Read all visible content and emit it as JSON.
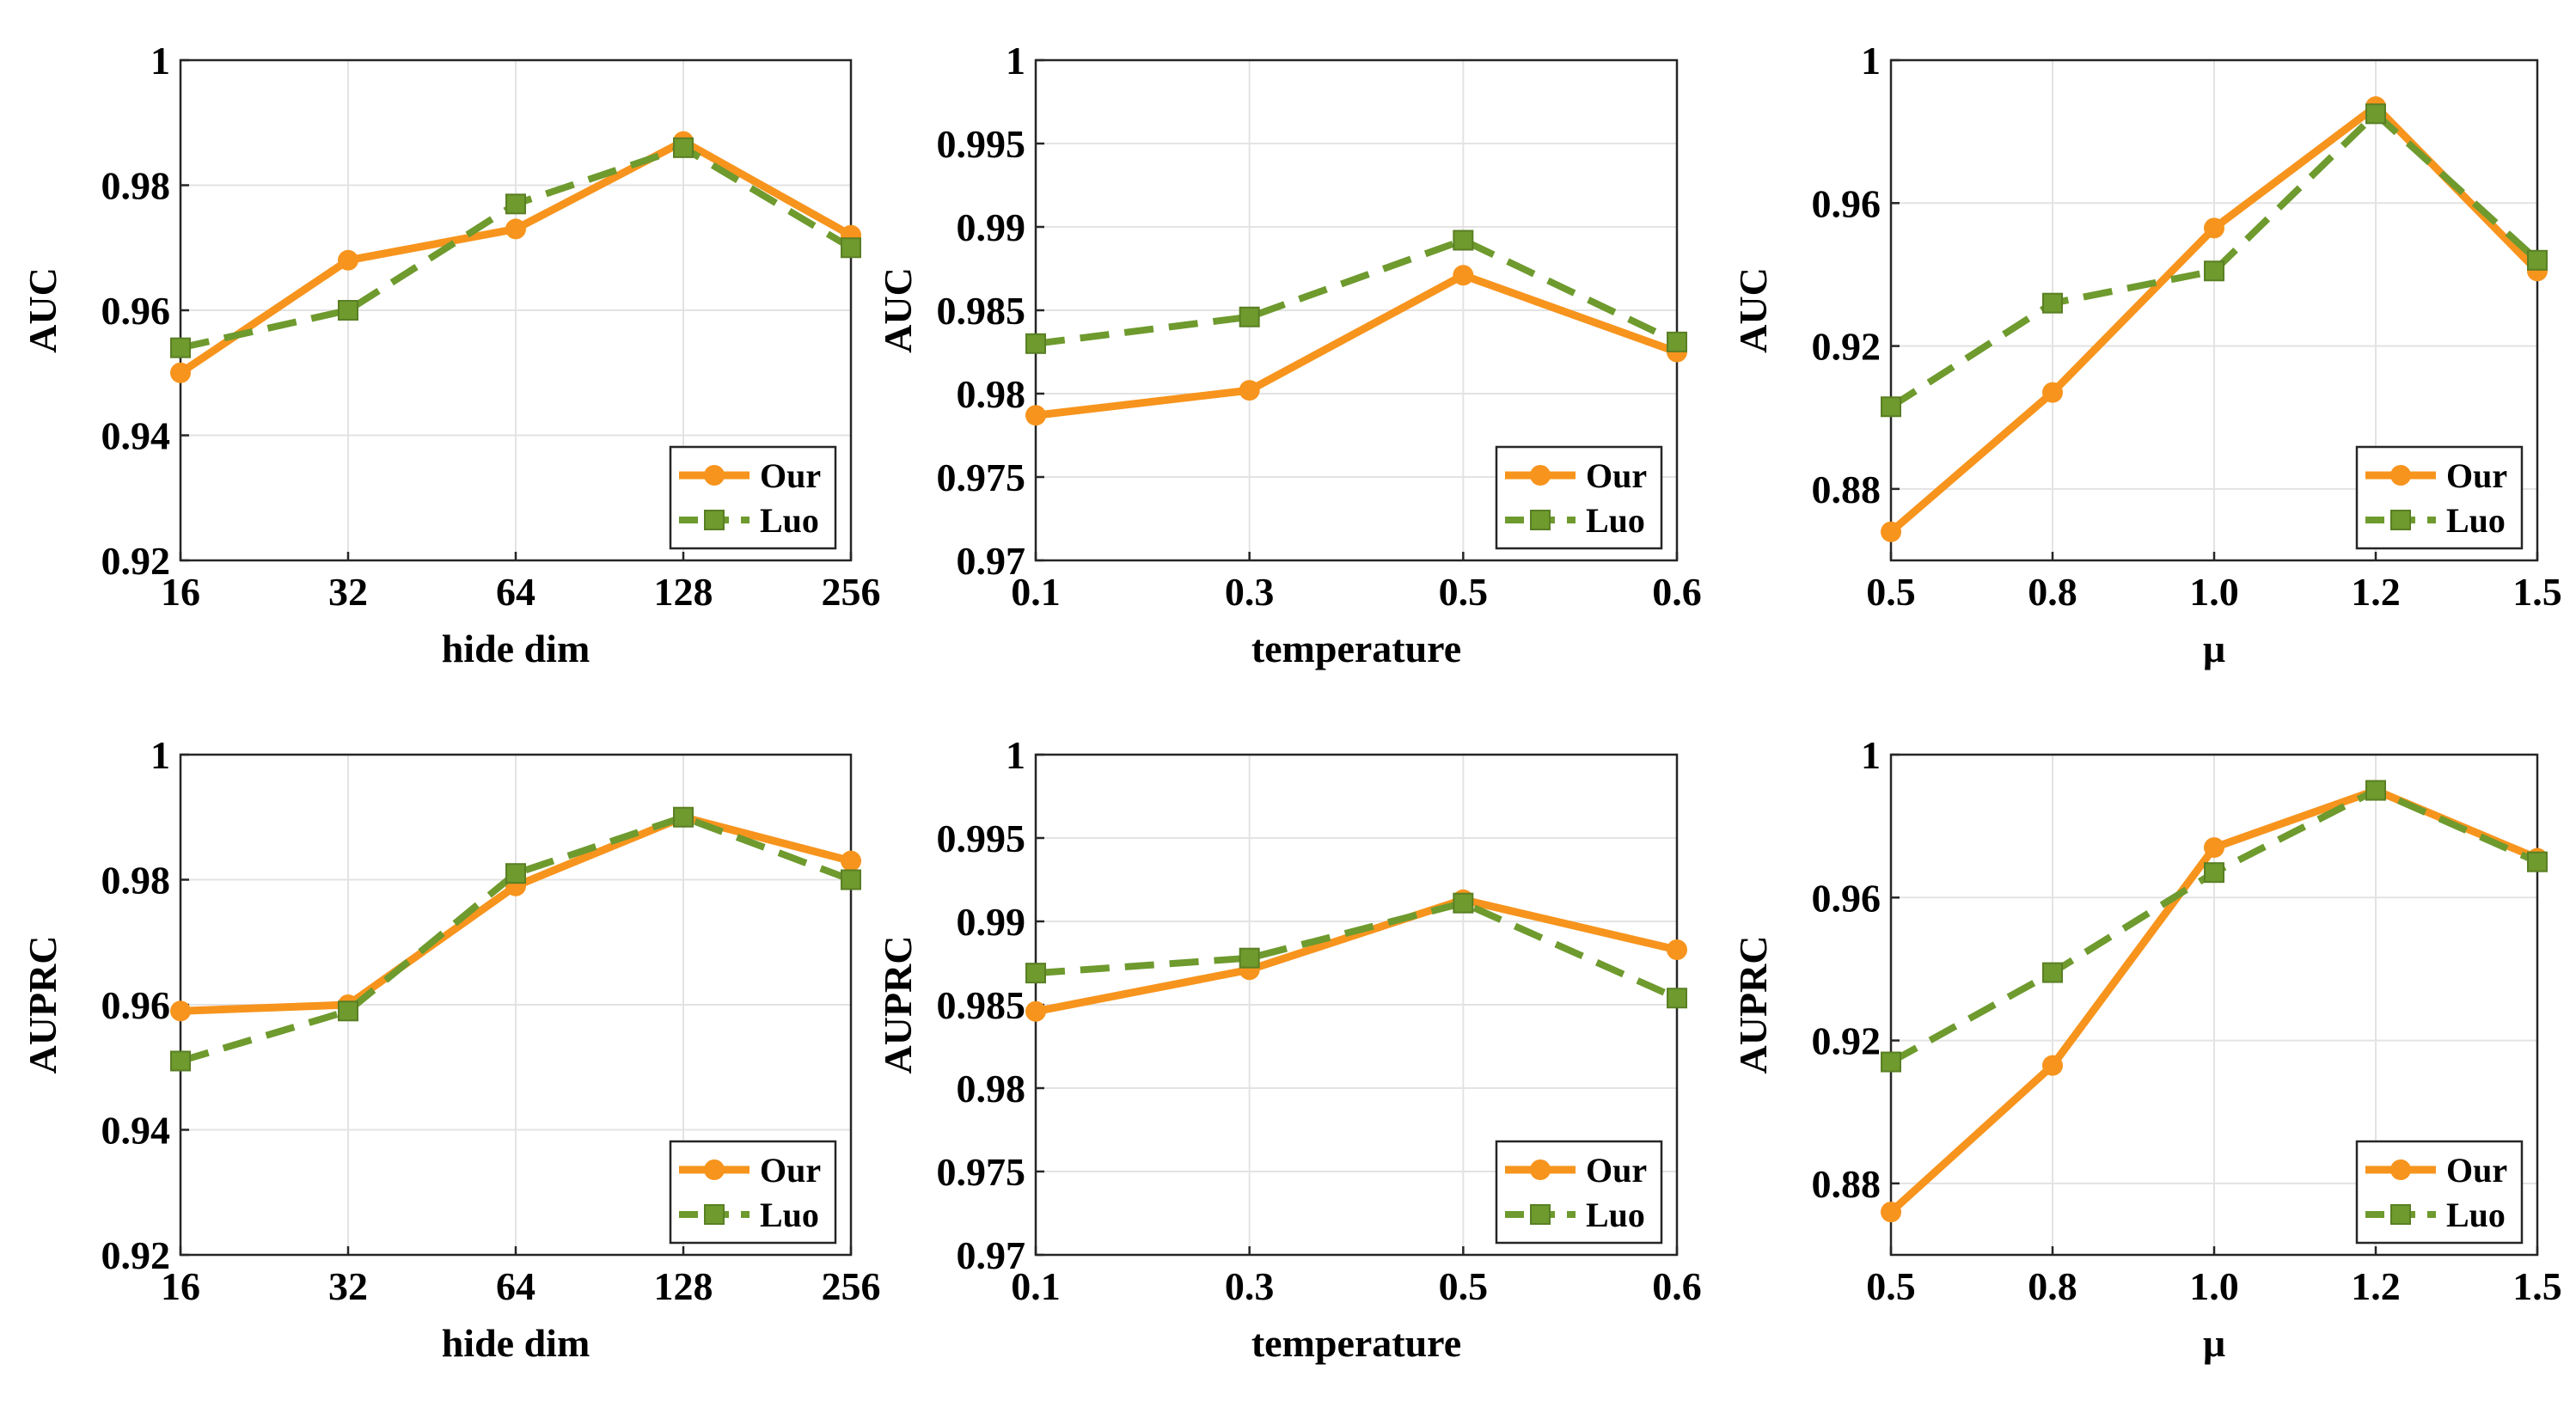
{
  "colors": {
    "our": "#F7941D",
    "luo": "#6E9A2E",
    "grid": "#e3e3e3",
    "axis": "#262626"
  },
  "chart_data": [
    {
      "type": "line",
      "xlabel": "hide dim",
      "ylabel": "AUC",
      "categories": [
        "16",
        "32",
        "64",
        "128",
        "256"
      ],
      "ylim": [
        0.92,
        1.0
      ],
      "yticks": [
        "0.92",
        "0.94",
        "0.96",
        "0.98",
        "1"
      ],
      "grid": true,
      "legend": "bottom-right",
      "series": [
        {
          "name": "Our",
          "values": [
            0.95,
            0.968,
            0.973,
            0.987,
            0.972
          ]
        },
        {
          "name": "Luo",
          "values": [
            0.954,
            0.96,
            0.977,
            0.986,
            0.97
          ]
        }
      ]
    },
    {
      "type": "line",
      "xlabel": "temperature",
      "ylabel": "AUC",
      "categories": [
        "0.1",
        "0.3",
        "0.5",
        "0.6"
      ],
      "ylim": [
        0.97,
        1.0
      ],
      "yticks": [
        "0.97",
        "0.975",
        "0.98",
        "0.985",
        "0.99",
        "0.995",
        "1"
      ],
      "grid": true,
      "legend": "bottom-right",
      "series": [
        {
          "name": "Our",
          "values": [
            0.9787,
            0.9802,
            0.9871,
            0.9825
          ]
        },
        {
          "name": "Luo",
          "values": [
            0.983,
            0.9846,
            0.9892,
            0.9831
          ]
        }
      ]
    },
    {
      "type": "line",
      "xlabel": "μ",
      "ylabel": "AUC",
      "categories": [
        "0.5",
        "0.8",
        "1.0",
        "1.2",
        "1.5"
      ],
      "ylim": [
        0.86,
        1.0
      ],
      "yticks": [
        "0.88",
        "0.92",
        "0.96",
        "1"
      ],
      "grid": true,
      "legend": "bottom-right",
      "series": [
        {
          "name": "Our",
          "values": [
            0.868,
            0.907,
            0.953,
            0.987,
            0.941
          ]
        },
        {
          "name": "Luo",
          "values": [
            0.903,
            0.932,
            0.941,
            0.985,
            0.944
          ]
        }
      ]
    },
    {
      "type": "line",
      "xlabel": "hide dim",
      "ylabel": "AUPRC",
      "categories": [
        "16",
        "32",
        "64",
        "128",
        "256"
      ],
      "ylim": [
        0.92,
        1.0
      ],
      "yticks": [
        "0.92",
        "0.94",
        "0.96",
        "0.98",
        "1"
      ],
      "grid": true,
      "legend": "bottom-right",
      "series": [
        {
          "name": "Our",
          "values": [
            0.959,
            0.96,
            0.979,
            0.99,
            0.983
          ]
        },
        {
          "name": "Luo",
          "values": [
            0.951,
            0.959,
            0.981,
            0.99,
            0.98
          ]
        }
      ]
    },
    {
      "type": "line",
      "xlabel": "temperature",
      "ylabel": "AUPRC",
      "categories": [
        "0.1",
        "0.3",
        "0.5",
        "0.6"
      ],
      "ylim": [
        0.97,
        1.0
      ],
      "yticks": [
        "0.97",
        "0.975",
        "0.98",
        "0.985",
        "0.99",
        "0.995",
        "1"
      ],
      "grid": true,
      "legend": "bottom-right",
      "series": [
        {
          "name": "Our",
          "values": [
            0.9846,
            0.9871,
            0.9913,
            0.9883
          ]
        },
        {
          "name": "Luo",
          "values": [
            0.9869,
            0.9878,
            0.9911,
            0.9854
          ]
        }
      ]
    },
    {
      "type": "line",
      "xlabel": "μ",
      "ylabel": "AUPRC",
      "categories": [
        "0.5",
        "0.8",
        "1.0",
        "1.2",
        "1.5"
      ],
      "ylim": [
        0.86,
        1.0
      ],
      "yticks": [
        "0.88",
        "0.92",
        "0.96",
        "1"
      ],
      "grid": true,
      "legend": "bottom-right",
      "series": [
        {
          "name": "Our",
          "values": [
            0.872,
            0.913,
            0.974,
            0.99,
            0.971
          ]
        },
        {
          "name": "Luo",
          "values": [
            0.914,
            0.939,
            0.967,
            0.99,
            0.97
          ]
        }
      ]
    }
  ]
}
